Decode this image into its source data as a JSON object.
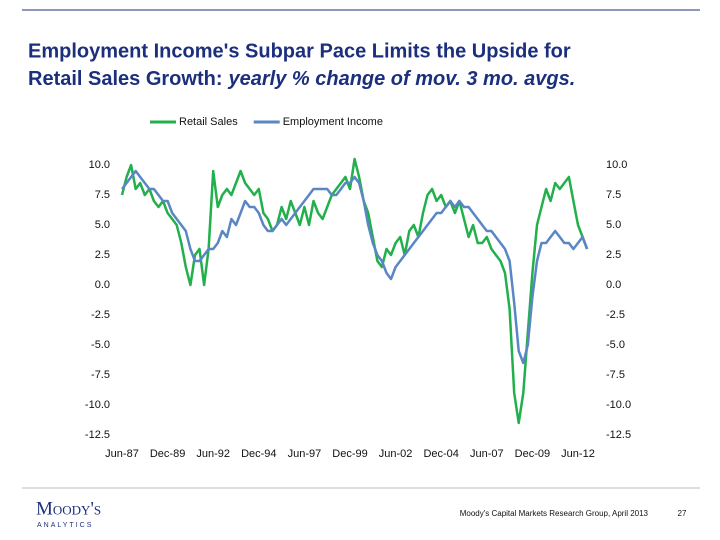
{
  "chart_data": {
    "type": "line",
    "title": "Employment Income's Subpar Pace Limits the Upside for",
    "title_line2": "Retail Sales Growth:",
    "subtitle": "yearly % change of  mov. 3 mo. avgs.",
    "categories": [
      "Jun-87",
      null,
      null,
      null,
      null,
      null,
      null,
      null,
      null,
      null,
      "Dec-89",
      null,
      null,
      null,
      null,
      null,
      null,
      null,
      null,
      null,
      "Jun-92",
      null,
      null,
      null,
      null,
      null,
      null,
      null,
      null,
      null,
      "Dec-94",
      null,
      null,
      null,
      null,
      null,
      null,
      null,
      null,
      null,
      "Jun-97",
      null,
      null,
      null,
      null,
      null,
      null,
      null,
      null,
      null,
      "Dec-99",
      null,
      null,
      null,
      null,
      null,
      null,
      null,
      null,
      null,
      "Jun-02",
      null,
      null,
      null,
      null,
      null,
      null,
      null,
      null,
      null,
      "Dec-04",
      null,
      null,
      null,
      null,
      null,
      null,
      null,
      null,
      null,
      "Jun-07",
      null,
      null,
      null,
      null,
      null,
      null,
      null,
      null,
      null,
      "Dec-09",
      null,
      null,
      null,
      null,
      null,
      null,
      null,
      null,
      null,
      "Jun-12",
      null,
      null
    ],
    "series": [
      {
        "name": "Retail Sales",
        "color": "#21b04b",
        "values": [
          7.5,
          9,
          10,
          8,
          8.5,
          7.5,
          8,
          7,
          6.5,
          7,
          6,
          5.5,
          5,
          3.5,
          1.5,
          0,
          2.5,
          3,
          0,
          3,
          9.5,
          6.5,
          7.5,
          8,
          7.5,
          8.5,
          9.5,
          8.5,
          8,
          7.5,
          8,
          6,
          5.5,
          4.5,
          5,
          6.5,
          5.5,
          7,
          6,
          5,
          6.5,
          5,
          7,
          6,
          5.5,
          6.5,
          7.5,
          8,
          8.5,
          9,
          8,
          10.5,
          9,
          7,
          6,
          4,
          2,
          1.5,
          3,
          2.5,
          3.5,
          4,
          2.5,
          4.5,
          5,
          4,
          6,
          7.5,
          8,
          7,
          7.5,
          6.5,
          7,
          6,
          7,
          5.5,
          4,
          5,
          3.5,
          3.5,
          4,
          3,
          2.5,
          2,
          1,
          -2,
          -9,
          -11.5,
          -9,
          -4,
          1,
          5,
          6.5,
          8,
          7,
          8.5,
          8,
          8.5,
          9,
          7,
          5,
          4,
          3
        ]
      },
      {
        "name": "Employment Income",
        "color": "#5a86c4",
        "values": [
          8,
          8.5,
          9,
          9.5,
          9,
          8.5,
          8,
          8,
          7.5,
          7,
          7,
          6,
          5.5,
          5,
          4.5,
          3,
          2,
          2,
          2.5,
          3,
          3,
          3.5,
          4.5,
          4,
          5.5,
          5,
          6,
          7,
          6.5,
          6.5,
          6,
          5,
          4.5,
          4.5,
          5,
          5.5,
          5,
          5.5,
          6,
          6.5,
          7,
          7.5,
          8,
          8,
          8,
          8,
          7.5,
          7.5,
          8,
          8.5,
          8.5,
          9,
          8.5,
          7,
          5,
          3.5,
          2.5,
          2,
          1,
          0.5,
          1.5,
          2,
          2.5,
          3,
          3.5,
          4,
          4.5,
          5,
          5.5,
          6,
          6,
          6.5,
          7,
          6.5,
          7,
          6.5,
          6.5,
          6,
          5.5,
          5,
          4.5,
          4.5,
          4,
          3.5,
          3,
          2,
          -1.5,
          -5.5,
          -6.5,
          -5,
          -1,
          2,
          3.5,
          3.5,
          4,
          4.5,
          4,
          3.5,
          3.5,
          3,
          3.5,
          4,
          3
        ]
      }
    ],
    "ylim": [
      -12.5,
      10
    ],
    "yticks": [
      {
        "value": 10,
        "label": "10.0"
      },
      7.5,
      {
        "value": 5,
        "label": "5.0"
      },
      2.5,
      {
        "value": 0,
        "label": "0.0"
      },
      -2.5,
      {
        "value": -5,
        "label": "-5.0"
      },
      -7.5,
      {
        "value": -10,
        "label": "-10.0"
      },
      -12.5
    ],
    "y2lim": [
      -12.5,
      10
    ],
    "y2ticks": [
      {
        "value": 10,
        "label": "10.0"
      },
      7.5,
      {
        "value": 5,
        "label": "5.0"
      },
      2.5,
      {
        "value": 0,
        "label": "0.0"
      },
      -2.5,
      {
        "value": -5,
        "label": "-5.0"
      },
      -7.5,
      {
        "value": -10,
        "label": "-10.0"
      },
      -12.5
    ],
    "grid": false,
    "legend": "top"
  },
  "footer": {
    "logo": "Moody's",
    "logo_sub": "ANALYTICS",
    "source": "Moody's Capital Markets Research Group, April 2013",
    "page": "27"
  }
}
